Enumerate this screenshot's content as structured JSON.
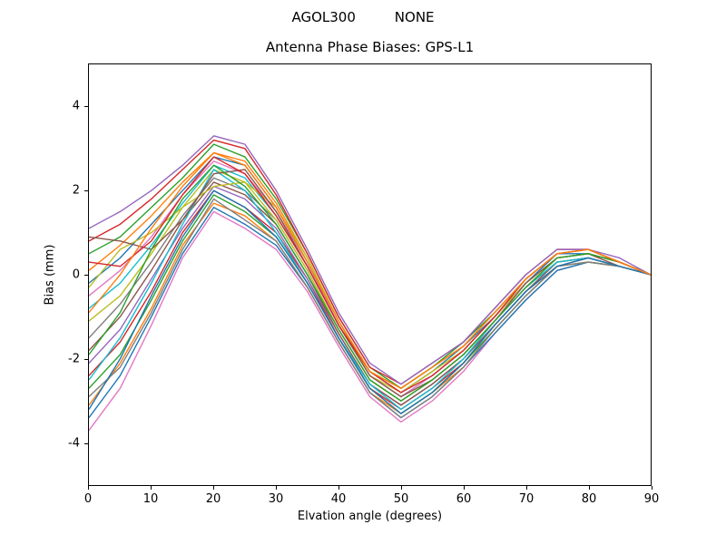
{
  "chart_data": {
    "type": "line",
    "suptitle": "AGOL300         NONE",
    "title": "Antenna Phase Biases: GPS-L1",
    "xlabel": "Elvation angle (degrees)",
    "ylabel": "Bias (mm)",
    "xlim": [
      0,
      90
    ],
    "ylim": [
      -5,
      5
    ],
    "xticks": [
      0,
      10,
      20,
      30,
      40,
      50,
      60,
      70,
      80,
      90
    ],
    "yticks": [
      -4,
      -2,
      0,
      2,
      4
    ],
    "grid": false,
    "legend": "none",
    "x": [
      0,
      5,
      10,
      15,
      20,
      25,
      30,
      35,
      40,
      45,
      50,
      55,
      60,
      65,
      70,
      75,
      80,
      85,
      90
    ],
    "series": [
      {
        "name": "s01",
        "color": "#e377c2",
        "values": [
          -3.7,
          -2.7,
          -1.2,
          0.4,
          1.5,
          1.1,
          0.6,
          -0.4,
          -1.7,
          -2.9,
          -3.5,
          -3.0,
          -2.3,
          -1.4,
          -0.6,
          0.1,
          0.3,
          0.2,
          0.0
        ]
      },
      {
        "name": "s02",
        "color": "#1f77b4",
        "values": [
          -3.4,
          -2.4,
          -1.0,
          0.5,
          1.6,
          1.2,
          0.7,
          -0.3,
          -1.6,
          -2.8,
          -3.4,
          -2.9,
          -2.2,
          -1.4,
          -0.6,
          0.1,
          0.3,
          0.2,
          0.0
        ]
      },
      {
        "name": "s03",
        "color": "#ff7f0e",
        "values": [
          -3.1,
          -2.1,
          -0.8,
          0.7,
          1.7,
          1.4,
          0.8,
          -0.3,
          -1.6,
          -2.8,
          -3.3,
          -2.8,
          -2.2,
          -1.3,
          -0.5,
          0.2,
          0.3,
          0.2,
          0.0
        ]
      },
      {
        "name": "s04",
        "color": "#2ca02c",
        "values": [
          -2.7,
          -1.9,
          -0.6,
          0.8,
          1.9,
          1.5,
          0.9,
          -0.2,
          -1.5,
          -2.7,
          -3.3,
          -2.8,
          -2.1,
          -1.3,
          -0.5,
          0.2,
          0.3,
          0.2,
          0.0
        ]
      },
      {
        "name": "s05",
        "color": "#d62728",
        "values": [
          -2.4,
          -1.6,
          -0.4,
          1.0,
          2.0,
          1.6,
          1.0,
          -0.1,
          -1.5,
          -2.7,
          -3.2,
          -2.7,
          -2.1,
          -1.2,
          -0.4,
          0.2,
          0.4,
          0.2,
          0.0
        ]
      },
      {
        "name": "s06",
        "color": "#9467bd",
        "values": [
          -2.1,
          -1.3,
          -0.1,
          1.1,
          2.1,
          1.8,
          1.1,
          -0.1,
          -1.4,
          -2.6,
          -3.1,
          -2.6,
          -2.0,
          -1.2,
          -0.4,
          0.3,
          0.4,
          0.2,
          0.0
        ]
      },
      {
        "name": "s07",
        "color": "#8c564b",
        "values": [
          -1.8,
          -1.0,
          0.1,
          1.3,
          2.2,
          1.9,
          1.2,
          0.0,
          -1.4,
          -2.6,
          -3.1,
          -2.6,
          -2.0,
          -1.2,
          -0.4,
          0.3,
          0.4,
          0.2,
          0.0
        ]
      },
      {
        "name": "s08",
        "color": "#7f7f7f",
        "values": [
          -1.5,
          -0.7,
          0.3,
          1.4,
          2.3,
          2.0,
          1.3,
          0.1,
          -1.3,
          -2.5,
          -3.0,
          -2.5,
          -1.9,
          -1.1,
          -0.3,
          0.3,
          0.4,
          0.2,
          0.0
        ]
      },
      {
        "name": "s09",
        "color": "#bcbd22",
        "values": [
          -1.1,
          -0.5,
          0.5,
          1.6,
          2.5,
          2.2,
          1.3,
          0.1,
          -1.3,
          -2.5,
          -3.0,
          -2.5,
          -1.9,
          -1.1,
          -0.3,
          0.4,
          0.5,
          0.3,
          0.0
        ]
      },
      {
        "name": "s10",
        "color": "#17becf",
        "values": [
          -0.8,
          -0.2,
          0.7,
          1.7,
          2.6,
          2.3,
          1.4,
          0.2,
          -1.2,
          -2.4,
          -2.9,
          -2.4,
          -1.8,
          -1.0,
          -0.2,
          0.4,
          0.5,
          0.3,
          0.0
        ]
      },
      {
        "name": "s11",
        "color": "#e377c2",
        "values": [
          -0.5,
          0.1,
          0.9,
          1.9,
          2.7,
          2.4,
          1.5,
          0.3,
          -1.2,
          -2.4,
          -2.9,
          -2.4,
          -1.8,
          -1.0,
          -0.2,
          0.4,
          0.5,
          0.3,
          0.0
        ]
      },
      {
        "name": "s12",
        "color": "#1f77b4",
        "values": [
          -0.2,
          0.4,
          1.2,
          2.0,
          2.8,
          2.6,
          1.6,
          0.3,
          -1.1,
          -2.3,
          -2.8,
          -2.3,
          -1.7,
          -1.0,
          -0.2,
          0.5,
          0.5,
          0.3,
          0.0
        ]
      },
      {
        "name": "s13",
        "color": "#ff7f0e",
        "values": [
          0.1,
          0.7,
          1.4,
          2.2,
          2.9,
          2.7,
          1.7,
          0.4,
          -1.1,
          -2.3,
          -2.7,
          -2.2,
          -1.7,
          -0.9,
          -0.1,
          0.5,
          0.6,
          0.3,
          0.0
        ]
      },
      {
        "name": "s14",
        "color": "#2ca02c",
        "values": [
          0.5,
          0.9,
          1.6,
          2.3,
          3.1,
          2.8,
          1.8,
          0.5,
          -1.0,
          -2.2,
          -2.7,
          -2.2,
          -1.6,
          -0.9,
          -0.1,
          0.5,
          0.6,
          0.3,
          0.0
        ]
      },
      {
        "name": "s15",
        "color": "#d62728",
        "values": [
          0.8,
          1.2,
          1.8,
          2.5,
          3.2,
          3.0,
          1.9,
          0.5,
          -1.0,
          -2.2,
          -2.6,
          -2.1,
          -1.6,
          -0.8,
          0.0,
          0.6,
          0.6,
          0.3,
          0.0
        ]
      },
      {
        "name": "s16",
        "color": "#9467bd",
        "values": [
          1.1,
          1.5,
          2.0,
          2.6,
          3.3,
          3.1,
          2.0,
          0.6,
          -0.9,
          -2.1,
          -2.6,
          -2.1,
          -1.6,
          -0.8,
          0.0,
          0.6,
          0.6,
          0.4,
          0.0
        ]
      },
      {
        "name": "s17",
        "color": "#17becf",
        "values": [
          -2.5,
          -1.5,
          -0.2,
          1.2,
          2.5,
          2.0,
          1.0,
          -0.2,
          -1.5,
          -2.6,
          -3.2,
          -2.7,
          -2.0,
          -1.1,
          -0.3,
          0.3,
          0.4,
          0.2,
          0.0
        ]
      },
      {
        "name": "s18",
        "color": "#bcbd22",
        "values": [
          -0.3,
          0.6,
          1.0,
          1.6,
          2.1,
          2.2,
          1.6,
          0.4,
          -1.1,
          -2.4,
          -2.8,
          -2.3,
          -1.8,
          -1.0,
          -0.2,
          0.4,
          0.5,
          0.3,
          0.0
        ]
      },
      {
        "name": "s19",
        "color": "#8c564b",
        "values": [
          0.9,
          0.8,
          0.6,
          1.3,
          2.4,
          2.5,
          1.5,
          0.2,
          -1.2,
          -2.4,
          -2.9,
          -2.5,
          -1.9,
          -1.1,
          -0.2,
          0.4,
          0.5,
          0.2,
          0.0
        ]
      },
      {
        "name": "s20",
        "color": "#7f7f7f",
        "values": [
          -2.9,
          -2.2,
          -0.9,
          0.6,
          1.8,
          1.3,
          0.8,
          -0.3,
          -1.6,
          -2.8,
          -3.4,
          -2.9,
          -2.2,
          -1.3,
          -0.5,
          0.2,
          0.3,
          0.2,
          0.0
        ]
      },
      {
        "name": "s21",
        "color": "#2ca02c",
        "values": [
          -1.9,
          -0.9,
          0.6,
          1.8,
          2.6,
          2.1,
          1.2,
          0.0,
          -1.3,
          -2.5,
          -3.0,
          -2.5,
          -1.9,
          -1.1,
          -0.3,
          0.4,
          0.5,
          0.3,
          0.0
        ]
      },
      {
        "name": "s22",
        "color": "#d62728",
        "values": [
          0.3,
          0.2,
          0.8,
          1.9,
          2.8,
          2.4,
          1.4,
          0.2,
          -1.2,
          -2.3,
          -2.8,
          -2.4,
          -1.8,
          -1.0,
          -0.1,
          0.5,
          0.6,
          0.3,
          0.0
        ]
      },
      {
        "name": "s23",
        "color": "#1f77b4",
        "values": [
          -3.2,
          -2.0,
          -0.5,
          0.9,
          2.0,
          1.6,
          0.9,
          -0.2,
          -1.5,
          -2.7,
          -3.3,
          -2.8,
          -2.1,
          -1.2,
          -0.4,
          0.2,
          0.4,
          0.2,
          0.0
        ]
      },
      {
        "name": "s24",
        "color": "#ff7f0e",
        "values": [
          -0.9,
          0.0,
          1.1,
          2.1,
          2.9,
          2.6,
          1.6,
          0.3,
          -1.1,
          -2.3,
          -2.7,
          -2.2,
          -1.7,
          -0.9,
          -0.1,
          0.5,
          0.6,
          0.3,
          0.0
        ]
      }
    ]
  },
  "colors": {
    "background": "#ffffff",
    "axes_border": "#000000",
    "text": "#000000"
  }
}
